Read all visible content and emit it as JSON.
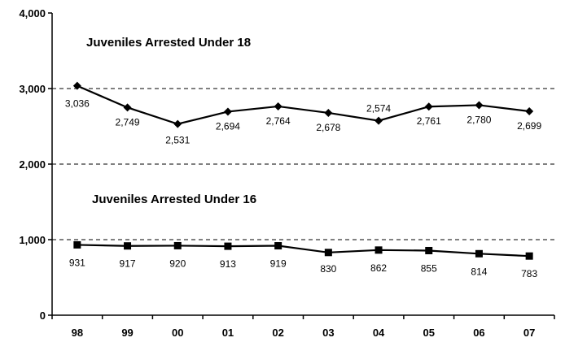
{
  "chart_data": {
    "type": "line",
    "categories": [
      "98",
      "99",
      "00",
      "01",
      "02",
      "03",
      "04",
      "05",
      "06",
      "07"
    ],
    "ylim": [
      0,
      4000
    ],
    "yticks": [
      0,
      1000,
      2000,
      3000,
      4000
    ],
    "ytick_labels": [
      "0",
      "1,000",
      "2,000",
      "3,000",
      "4,000"
    ],
    "grid": "dashed horizontal at 1,000 2,000 3,000",
    "series": [
      {
        "name": "Juveniles Arrested Under 18",
        "marker": "diamond",
        "color": "#000000",
        "values": [
          3036,
          2749,
          2531,
          2694,
          2764,
          2678,
          2574,
          2761,
          2780,
          2699
        ],
        "labels": [
          "3,036",
          "2,749",
          "2,531",
          "2,694",
          "2,764",
          "2,678",
          "2,574",
          "2,761",
          "2,780",
          "2,699"
        ]
      },
      {
        "name": "Juveniles Arrested Under 16",
        "marker": "square",
        "color": "#000000",
        "values": [
          931,
          917,
          920,
          913,
          919,
          830,
          862,
          855,
          814,
          783
        ],
        "labels": [
          "931",
          "917",
          "920",
          "913",
          "919",
          "830",
          "862",
          "855",
          "814",
          "783"
        ]
      }
    ]
  }
}
